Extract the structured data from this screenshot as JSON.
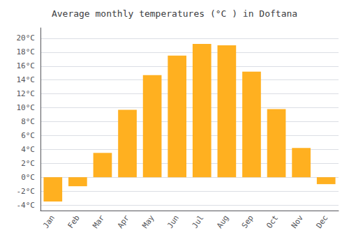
{
  "chart_data": {
    "type": "bar",
    "title": "Average monthly temperatures (°C ) in Doftana",
    "categories": [
      "Jan",
      "Feb",
      "Mar",
      "Apr",
      "May",
      "Jun",
      "Jul",
      "Aug",
      "Sep",
      "Oct",
      "Nov",
      "Dec"
    ],
    "values": [
      -3.5,
      -1.3,
      3.5,
      9.7,
      14.7,
      17.5,
      19.2,
      19.0,
      15.2,
      9.8,
      4.2,
      -1.0
    ],
    "color": "#FFB020",
    "ylim": [
      -4.8,
      21.5
    ],
    "yticks": [
      {
        "value": -4,
        "label": "-4°C"
      },
      {
        "value": -2,
        "label": "-2°C"
      },
      {
        "value": 0,
        "label": "0°C"
      },
      {
        "value": 2,
        "label": "2°C"
      },
      {
        "value": 4,
        "label": "4°C"
      },
      {
        "value": 6,
        "label": "6°C"
      },
      {
        "value": 8,
        "label": "8°C"
      },
      {
        "value": 10,
        "label": "10°C"
      },
      {
        "value": 12,
        "label": "12°C"
      },
      {
        "value": 14,
        "label": "14°C"
      },
      {
        "value": 16,
        "label": "16°C"
      },
      {
        "value": 18,
        "label": "18°C"
      },
      {
        "value": 20,
        "label": "20°C"
      }
    ],
    "grid": true
  }
}
